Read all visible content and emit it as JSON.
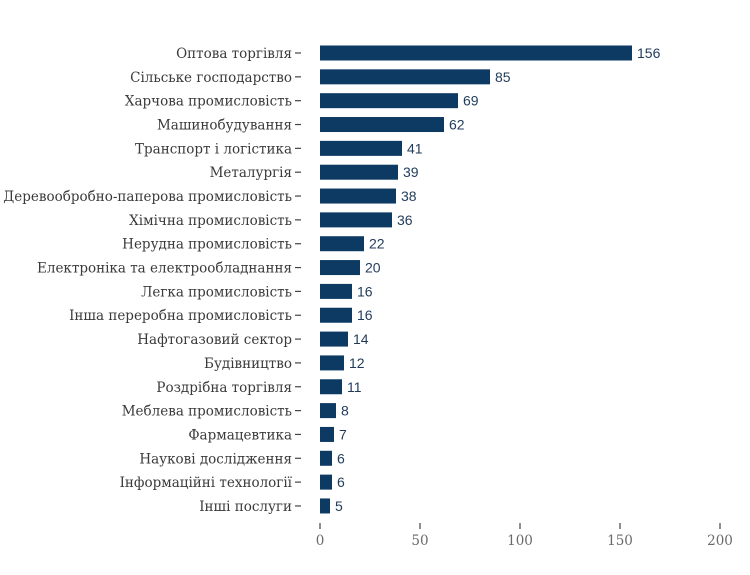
{
  "chart_data": {
    "type": "bar",
    "orientation": "horizontal",
    "categories": [
      "Оптова торгівля",
      "Сільське господарство",
      "Харчова промисловість",
      "Машинобудування",
      "Транспорт і логістика",
      "Металургія",
      "Деревообробно-паперова промисловість",
      "Хімічна промисловість",
      "Нерудна промисловість",
      "Електроніка та електрообладнання",
      "Легка промисловість",
      "Інша переробна промисловість",
      "Нафтогазовий сектор",
      "Будівництво",
      "Роздрібна торгівля",
      "Меблева промисловість",
      "Фармацевтика",
      "Наукові дослідження",
      "Інформаційні технології",
      "Інші послуги"
    ],
    "values": [
      156,
      85,
      69,
      62,
      41,
      39,
      38,
      36,
      22,
      20,
      16,
      16,
      14,
      12,
      11,
      8,
      7,
      6,
      6,
      5
    ],
    "x_ticks": [
      0,
      50,
      100,
      150,
      200
    ],
    "xlim": [
      0,
      200
    ],
    "grid": false,
    "bar_color": "#0d3a63",
    "value_label_color": "#1f3b5a"
  }
}
